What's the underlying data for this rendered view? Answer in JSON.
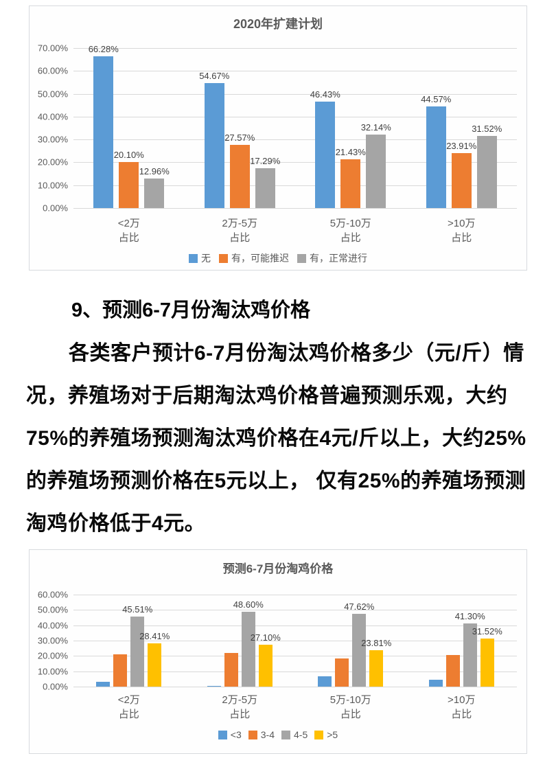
{
  "article": {
    "heading": "9、预测6-7月份淘汰鸡价格",
    "lines": [
      "各类客户预计6-7月份淘汰鸡价格多少（元/斤）情",
      "况，养殖场对于后期淘汰鸡价格普遍预测乐观，大约",
      "75%的养殖场预测淘汰鸡价格在4元/斤以上，大约25%",
      "的养殖场预测价格在5元以上， 仅有25%的养殖场预测",
      "淘鸡价格低于4元。"
    ]
  },
  "colors": {
    "blue": "#5B9BD5",
    "orange": "#ED7D31",
    "gray": "#A5A5A5",
    "yellow": "#FFC000",
    "axis_text": "#595959",
    "gridline": "#d9d9d9",
    "data_label": "#404040"
  },
  "chart_data": [
    {
      "type": "bar",
      "title": "2020年扩建计划",
      "categories": [
        "<2万",
        "2万-5万",
        "5万-10万",
        ">10万"
      ],
      "category_suffix": "占比",
      "ylim": [
        0,
        70
      ],
      "ytick_step": 10,
      "yticks": [
        "70.00%",
        "60.00%",
        "50.00%",
        "40.00%",
        "30.00%",
        "20.00%",
        "10.00%",
        "0.00%"
      ],
      "grid": true,
      "legend_position": "bottom",
      "series": [
        {
          "name": "无",
          "color": "#5B9BD5",
          "values": [
            66.28,
            54.67,
            46.43,
            44.57
          ],
          "labels": [
            "66.28%",
            "54.67%",
            "46.43%",
            "44.57%"
          ]
        },
        {
          "name": "有，可能推迟",
          "color": "#ED7D31",
          "values": [
            20.1,
            27.57,
            21.43,
            23.91
          ],
          "labels": [
            "20.10%",
            "27.57%",
            "21.43%",
            "23.91%"
          ]
        },
        {
          "name": "有，正常进行",
          "color": "#A5A5A5",
          "values": [
            12.96,
            17.29,
            32.14,
            31.52
          ],
          "labels": [
            "12.96%",
            "17.29%",
            "32.14%",
            "31.52%"
          ]
        }
      ]
    },
    {
      "type": "bar",
      "title": "预测6-7月份淘鸡价格",
      "categories": [
        "<2万",
        "2万-5万",
        "5万-10万",
        ">10万"
      ],
      "category_suffix": "占比",
      "ylim": [
        0,
        60
      ],
      "ytick_step": 10,
      "yticks": [
        "60.00%",
        "50.00%",
        "40.00%",
        "30.00%",
        "20.00%",
        "10.00%",
        "0.00%"
      ],
      "grid": true,
      "legend_position": "bottom",
      "series": [
        {
          "name": "<3",
          "color": "#5B9BD5",
          "values": [
            3.2,
            0.6,
            6.8,
            4.3
          ],
          "labels": [
            "",
            "",
            "",
            ""
          ]
        },
        {
          "name": "3-4",
          "color": "#ED7D31",
          "values": [
            20.9,
            21.9,
            18.5,
            20.6
          ],
          "labels": [
            "",
            "",
            "",
            ""
          ]
        },
        {
          "name": "4-5",
          "color": "#A5A5A5",
          "values": [
            45.51,
            48.6,
            47.62,
            41.3
          ],
          "labels": [
            "45.51%",
            "48.60%",
            "47.62%",
            "41.30%"
          ]
        },
        {
          "name": ">5",
          "color": "#FFC000",
          "values": [
            28.41,
            27.1,
            23.81,
            31.52
          ],
          "labels": [
            "28.41%",
            "27.10%",
            "23.81%",
            "31.52%"
          ]
        }
      ]
    }
  ]
}
